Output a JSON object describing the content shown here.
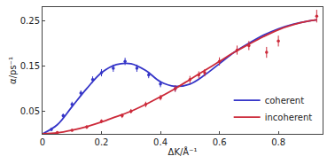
{
  "chart_data": {
    "type": "line",
    "x_label": "ΔK/Å⁻¹",
    "y_label": "α/ps⁻¹",
    "xlim": [
      0,
      0.95
    ],
    "xticks": [
      0,
      0.2,
      0.4,
      0.6,
      0.8
    ],
    "ylim": [
      0,
      0.28
    ],
    "yticks": [
      0.05,
      0.15,
      0.25
    ],
    "grid": false,
    "legend": "bottom right",
    "series": [
      {
        "name": "coherent",
        "color": "#3535c8",
        "type": "line",
        "line_style": "solid",
        "x": [
          0,
          0.05,
          0.1,
          0.15,
          0.2,
          0.25,
          0.3,
          0.35,
          0.4,
          0.45,
          0.5,
          0.55,
          0.6,
          0.65,
          0.7,
          0.75,
          0.8,
          0.85,
          0.9,
          0.93
        ],
        "values": [
          0,
          0.02,
          0.06,
          0.1,
          0.135,
          0.153,
          0.155,
          0.14,
          0.115,
          0.105,
          0.11,
          0.13,
          0.155,
          0.18,
          0.2,
          0.218,
          0.232,
          0.242,
          0.249,
          0.252
        ]
      },
      {
        "name": "incoherent",
        "color": "#cc2a3a",
        "type": "line",
        "line_style": "solid",
        "x": [
          0,
          0.05,
          0.1,
          0.15,
          0.2,
          0.25,
          0.3,
          0.35,
          0.4,
          0.45,
          0.5,
          0.55,
          0.6,
          0.65,
          0.7,
          0.75,
          0.8,
          0.85,
          0.9,
          0.93
        ],
        "values": [
          0,
          0.002,
          0.008,
          0.016,
          0.026,
          0.038,
          0.05,
          0.065,
          0.082,
          0.1,
          0.12,
          0.14,
          0.16,
          0.18,
          0.198,
          0.215,
          0.23,
          0.241,
          0.249,
          0.252
        ]
      },
      {
        "color": "#3535c8",
        "type": "scatter",
        "marker": "circle",
        "x": [
          0.03,
          0.07,
          0.1,
          0.13,
          0.17,
          0.2,
          0.24,
          0.28,
          0.32,
          0.36,
          0.4,
          0.45
        ],
        "values": [
          0.01,
          0.04,
          0.065,
          0.09,
          0.12,
          0.135,
          0.145,
          0.16,
          0.145,
          0.13,
          0.11,
          0.1
        ],
        "errors": [
          0.004,
          0.005,
          0.006,
          0.006,
          0.007,
          0.008,
          0.008,
          0.008,
          0.008,
          0.007,
          0.007,
          0.007
        ]
      },
      {
        "color": "#cc2a3a",
        "type": "scatter",
        "marker": "circle",
        "x": [
          0.05,
          0.1,
          0.15,
          0.2,
          0.27,
          0.3,
          0.35,
          0.4,
          0.45,
          0.5,
          0.53,
          0.55,
          0.6,
          0.66,
          0.7,
          0.76,
          0.8,
          0.93
        ],
        "values": [
          0.003,
          0.008,
          0.015,
          0.028,
          0.04,
          0.05,
          0.065,
          0.08,
          0.1,
          0.12,
          0.13,
          0.135,
          0.16,
          0.185,
          0.195,
          0.18,
          0.205,
          0.26
        ],
        "errors": [
          0.003,
          0.003,
          0.004,
          0.004,
          0.005,
          0.005,
          0.006,
          0.006,
          0.007,
          0.008,
          0.008,
          0.008,
          0.009,
          0.01,
          0.01,
          0.012,
          0.012,
          0.014
        ]
      }
    ]
  }
}
